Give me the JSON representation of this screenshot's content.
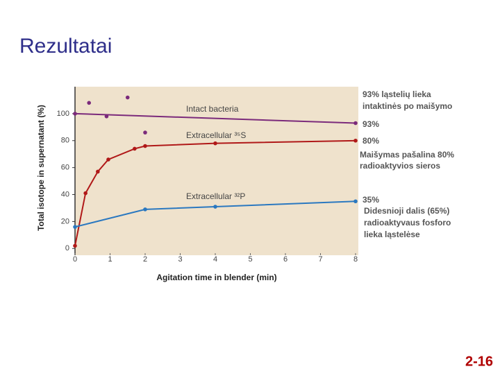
{
  "title": "Rezultatai",
  "slide_number": "2-16",
  "annotations": [
    "93% ląstelių lieka",
    "intaktinės po maišymo",
    "93%",
    "80%",
    "Maišymas pašalina 80%",
    "radioaktyvios sieros",
    "35%",
    "Didesnioji dalis (65%)",
    "radioaktyvaus fosforo",
    "lieka ląstelėse"
  ],
  "chart_data": {
    "type": "line",
    "x_label": "Agitation time in blender (min)",
    "y_label": "Total isotope in supernatant (%)",
    "xlim": [
      0,
      8
    ],
    "xticks": [
      0,
      1,
      2,
      3,
      4,
      5,
      6,
      7,
      8
    ],
    "ylim": [
      -5,
      120
    ],
    "yticks": [
      0,
      20,
      40,
      60,
      80,
      100
    ],
    "series": [
      {
        "name": "Intact bacteria",
        "color": "#7b2a7b",
        "x": [
          0,
          8
        ],
        "values": [
          100,
          93
        ]
      },
      {
        "color": "#7b2a7b",
        "style": "markers",
        "x": [
          0.4,
          0.9,
          1.5,
          2
        ],
        "values": [
          108,
          98,
          112,
          86
        ]
      },
      {
        "name": "Extracellular ³⁵S",
        "color": "#b01818",
        "x": [
          0,
          0.3,
          0.65,
          0.95,
          1.7,
          2,
          4,
          8
        ],
        "values": [
          2,
          41,
          57,
          66,
          74,
          76,
          78,
          80
        ]
      },
      {
        "name": "Extracellular ³²P",
        "color": "#2a78c0",
        "x": [
          0,
          2,
          4,
          8
        ],
        "values": [
          16,
          29,
          31,
          35
        ]
      }
    ]
  }
}
